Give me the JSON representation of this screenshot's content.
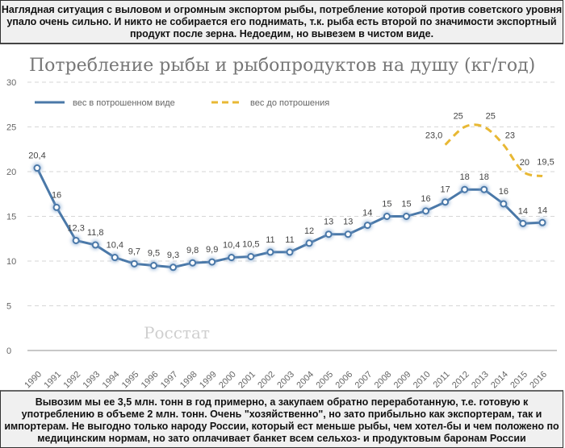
{
  "header_note": "Наглядная ситуация с выловом и огромным экспортом рыбы, потребление которой против советского уровня упало очень сильно. И никто не собирается его поднимать, т.к. рыба есть второй по значимости экспортный продукт после зерна. Недоедим, но вывезем в чистом виде.",
  "footer_note": "Вывозим мы ее 3,5 млн. тонн в год примерно, а закупаем обратно переработанную, т.е. готовую к употреблению в объеме 2 млн. тонн. Очень \"хозяйственно\", но зато прибыльно как экспортерам, так и импортерам. Не выгодно только народу России, который ест меньше рыбы, чем хотел-бы и чем положено по медицинским нормам, но зато оплачивает банкет всем сельхоз- и продуктовым баронам России",
  "chart_data": {
    "type": "line",
    "title": "Потребление рыбы и рыбопродуктов на душу (кг/год)",
    "watermark": "Росстат",
    "ylim": [
      0,
      30
    ],
    "yticks": [
      0,
      5,
      10,
      15,
      20,
      25,
      30
    ],
    "grid": "horizontal dashed",
    "legend_position": "top-left",
    "x": [
      "1990",
      "1991",
      "1992",
      "1993",
      "1994",
      "1995",
      "1996",
      "1997",
      "1998",
      "1999",
      "2000",
      "2001",
      "2002",
      "2003",
      "2004",
      "2005",
      "2006",
      "2007",
      "2008",
      "2009",
      "2010",
      "2011",
      "2012",
      "2013",
      "2014",
      "2015",
      "2016"
    ],
    "series": [
      {
        "name": "вес в потрошенном виде",
        "color": "#4a78a8",
        "style": "solid with markers",
        "values": [
          20.4,
          16,
          12.3,
          11.8,
          10.4,
          9.7,
          9.5,
          9.3,
          9.8,
          9.9,
          10.4,
          10.5,
          11,
          11,
          12,
          13,
          13,
          14,
          15,
          15,
          15.6,
          16.6,
          18,
          18,
          16.4,
          14.2,
          14.3
        ],
        "labels": [
          "20,4",
          "16",
          "12,3",
          "11,8",
          "10,4",
          "9,7",
          "9,5",
          "9,3",
          "9,8",
          "9,9",
          "10,4",
          "10,5",
          "11",
          "11",
          "12",
          "13",
          "13",
          "14",
          "15",
          "15",
          "16",
          "17",
          "18",
          "18",
          "16",
          "14",
          "14"
        ]
      },
      {
        "name": "вес до потрошения",
        "color": "#e8b834",
        "style": "dashed smooth",
        "x": [
          "2011",
          "2012",
          "2013",
          "2014",
          "2015",
          "2016"
        ],
        "values": [
          23,
          25,
          25,
          23,
          20,
          19.5
        ],
        "labels": [
          "23,0",
          "25",
          "25",
          "23",
          "20",
          "19,5"
        ]
      }
    ]
  }
}
